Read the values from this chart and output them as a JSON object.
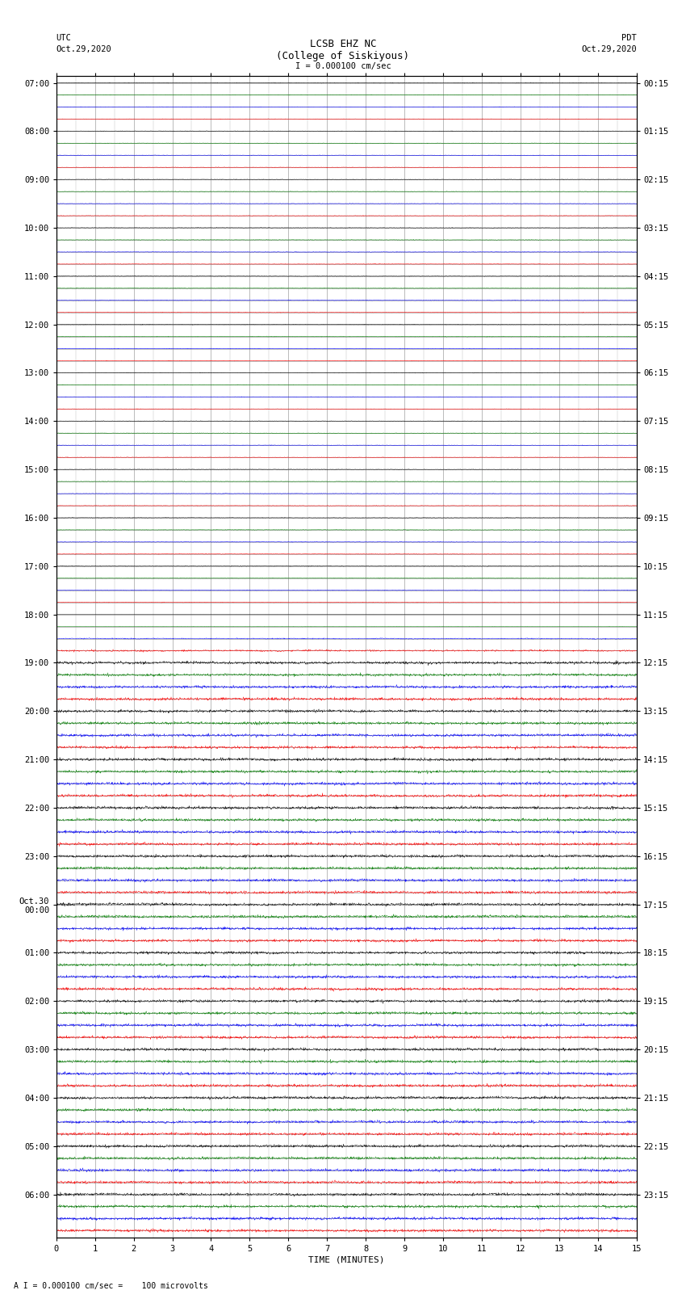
{
  "title_line1": "LCSB EHZ NC",
  "title_line2": "(College of Siskiyous)",
  "scale_text": "I = 0.000100 cm/sec",
  "left_label": "UTC",
  "left_date": "Oct.29,2020",
  "right_label": "PDT",
  "right_date": "Oct.29,2020",
  "xlabel": "TIME (MINUTES)",
  "footer_text": "A I = 0.000100 cm/sec =    100 microvolts",
  "utc_times": [
    "07:00",
    "08:00",
    "09:00",
    "10:00",
    "11:00",
    "12:00",
    "13:00",
    "14:00",
    "15:00",
    "16:00",
    "17:00",
    "18:00",
    "19:00",
    "20:00",
    "21:00",
    "22:00",
    "23:00",
    "Oct.30\n00:00",
    "01:00",
    "02:00",
    "03:00",
    "04:00",
    "05:00",
    "06:00"
  ],
  "pdt_times": [
    "00:15",
    "01:15",
    "02:15",
    "03:15",
    "04:15",
    "05:15",
    "06:15",
    "07:15",
    "08:15",
    "09:15",
    "10:15",
    "11:15",
    "12:15",
    "13:15",
    "14:15",
    "15:15",
    "16:15",
    "17:15",
    "18:15",
    "19:15",
    "20:15",
    "21:15",
    "22:15",
    "23:15"
  ],
  "n_hours": 24,
  "traces_per_hour": 4,
  "n_points": 1800,
  "xmin": 0,
  "xmax": 15,
  "quiet_hours": 11,
  "colors_cycle": [
    "black",
    "green",
    "blue",
    "red"
  ],
  "bg_color": "white",
  "grid_color": "#888888",
  "text_color": "black",
  "title_fontsize": 9,
  "label_fontsize": 7.5,
  "tick_fontsize": 7.5,
  "footer_fontsize": 7,
  "trace_amplitude_quiet": 0.06,
  "trace_amplitude_active": 0.38
}
